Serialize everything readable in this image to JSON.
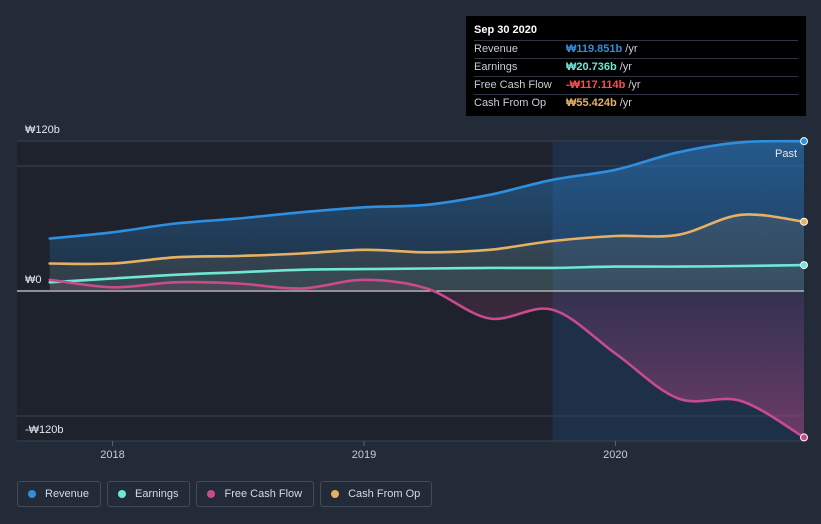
{
  "chart_data": {
    "type": "area",
    "currency": "₩",
    "y_unit": "b",
    "ylim": [
      -120,
      120
    ],
    "y_ticks": [
      {
        "value": 120,
        "label": "₩120b"
      },
      {
        "value": 0,
        "label": "₩0"
      },
      {
        "value": -120,
        "label": "-₩120b"
      }
    ],
    "x_ticks": [
      {
        "value": 2018.0,
        "label": "2018"
      },
      {
        "value": 2019.0,
        "label": "2019"
      },
      {
        "value": 2020.0,
        "label": "2020"
      }
    ],
    "xlim": [
      2017.62,
      2020.75
    ],
    "past_region_start": 2019.75,
    "past_label": "Past",
    "x": [
      2017.75,
      2018.0,
      2018.25,
      2018.5,
      2018.75,
      2019.0,
      2019.25,
      2019.5,
      2019.75,
      2020.0,
      2020.25,
      2020.5,
      2020.75
    ],
    "series": [
      {
        "name": "Revenue",
        "color": "#2e8fdf",
        "values": [
          42,
          47,
          54,
          58,
          63,
          67,
          69,
          77,
          89,
          97,
          111,
          119,
          119.851
        ]
      },
      {
        "name": "Earnings",
        "color": "#6ee7d4",
        "values": [
          7,
          10,
          13,
          15,
          17,
          17.5,
          18,
          18.5,
          18.5,
          19.5,
          19.5,
          20,
          20.736
        ]
      },
      {
        "name": "Free Cash Flow",
        "color": "#c94a8d",
        "values": [
          9,
          3,
          7,
          6,
          2,
          9,
          2,
          -22,
          -15,
          -50,
          -86,
          -88,
          -117.114
        ]
      },
      {
        "name": "Cash From Op",
        "color": "#e6b163",
        "values": [
          22,
          22,
          27,
          28,
          30,
          33,
          31,
          33,
          40,
          44,
          45,
          61,
          55.424
        ]
      }
    ]
  },
  "tooltip": {
    "date": "Sep 30 2020",
    "rows": [
      {
        "label": "Revenue",
        "value": "₩119.851b",
        "unit": "/yr",
        "color": "#2e8fdf"
      },
      {
        "label": "Earnings",
        "value": "₩20.736b",
        "unit": "/yr",
        "color": "#6ee7d4"
      },
      {
        "label": "Free Cash Flow",
        "value": "-₩117.114b",
        "unit": "/yr",
        "color": "#ff4d4d"
      },
      {
        "label": "Cash From Op",
        "value": "₩55.424b",
        "unit": "/yr",
        "color": "#e6b163"
      }
    ]
  },
  "legend": [
    {
      "label": "Revenue",
      "color": "#2e8fdf"
    },
    {
      "label": "Earnings",
      "color": "#6ee7d4"
    },
    {
      "label": "Free Cash Flow",
      "color": "#c94a8d"
    },
    {
      "label": "Cash From Op",
      "color": "#e6b163"
    }
  ]
}
